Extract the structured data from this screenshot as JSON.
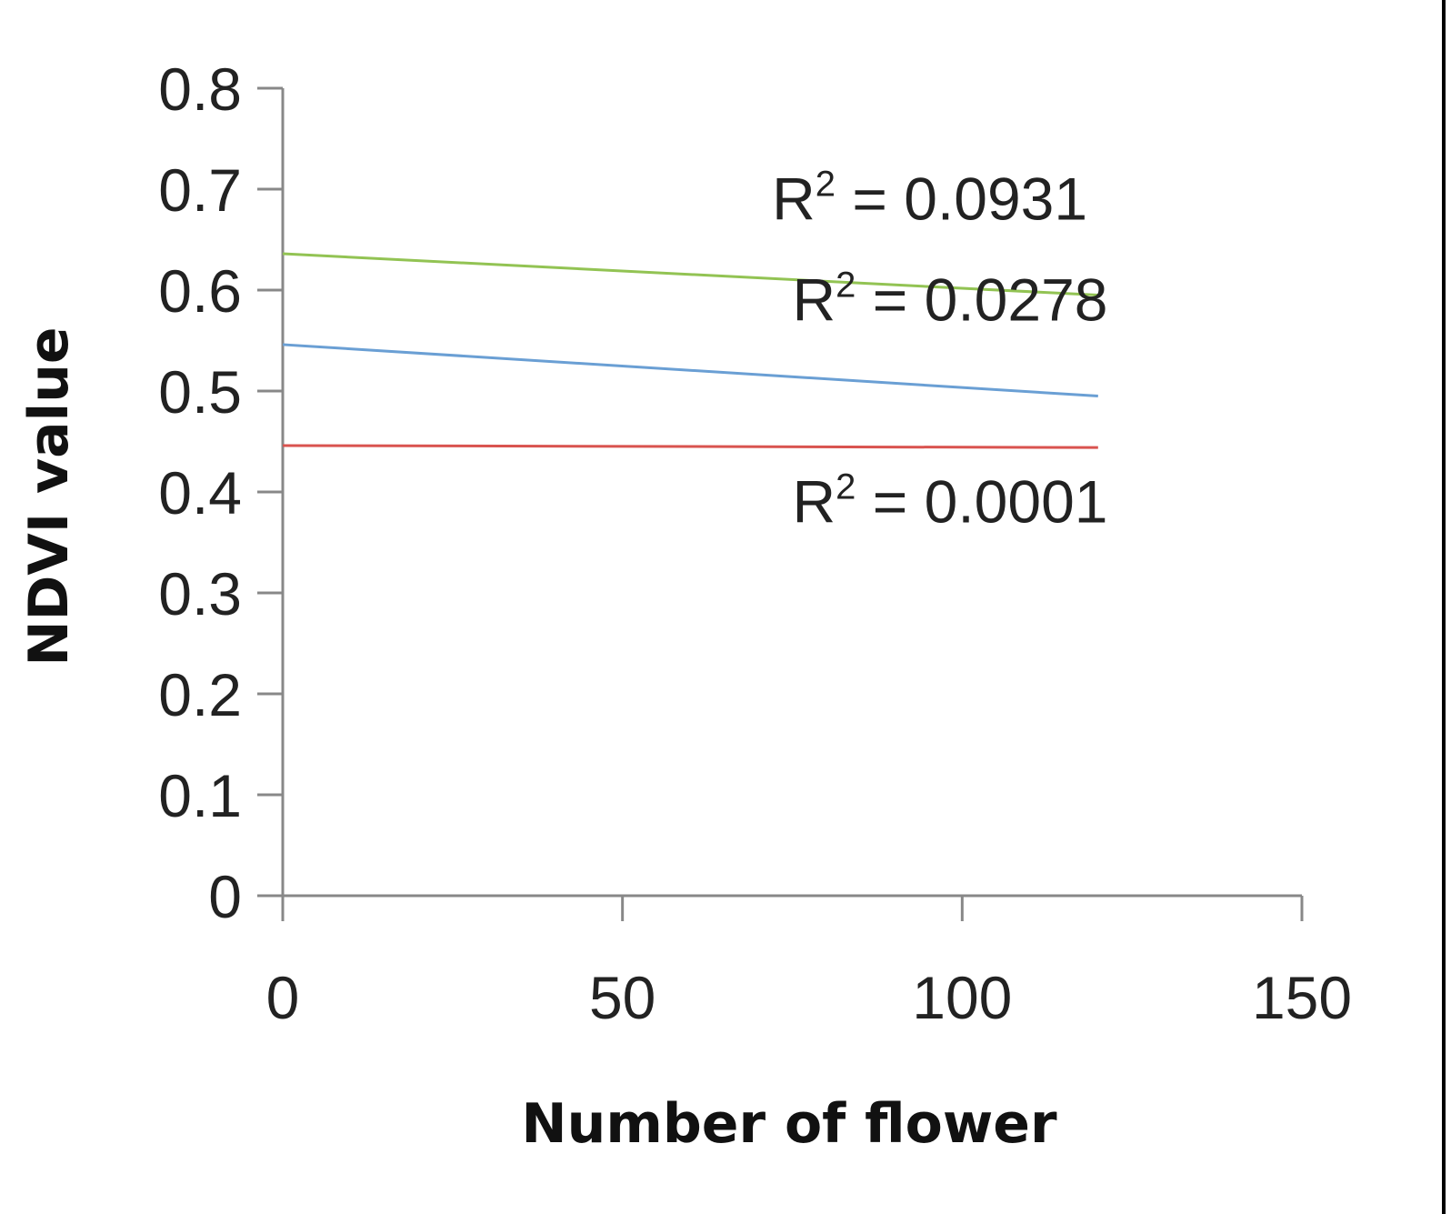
{
  "chart_data": {
    "type": "line",
    "xlabel": "Number of flower",
    "ylabel": "NDVI value",
    "xlim": [
      0,
      150
    ],
    "ylim": [
      0,
      0.8
    ],
    "x_ticks": [
      0,
      50,
      100,
      150
    ],
    "y_ticks": [
      0,
      0.1,
      0.2,
      0.3,
      0.4,
      0.5,
      0.6,
      0.7,
      0.8
    ],
    "x_tick_labels": [
      "0",
      "50",
      "100",
      "150"
    ],
    "y_tick_labels": [
      "0",
      "0.1",
      "0.2",
      "0.3",
      "0.4",
      "0.5",
      "0.6",
      "0.7",
      "0.8"
    ],
    "grid": false,
    "legend": "none",
    "series": [
      {
        "color": "#92c353",
        "x": [
          0,
          120
        ],
        "y": [
          0.636,
          0.595
        ],
        "r2_label": "0.0931"
      },
      {
        "color": "#6a9fd4",
        "x": [
          0,
          120
        ],
        "y": [
          0.546,
          0.495
        ],
        "r2_label": "0.0278"
      },
      {
        "color": "#d9534f",
        "x": [
          0,
          120
        ],
        "y": [
          0.446,
          0.444
        ],
        "r2_label": "0.0001"
      }
    ],
    "annotations": [
      {
        "text_prefix": "R",
        "sup": "2",
        "text_suffix": " = 0.0931",
        "x": 72,
        "y": 0.67
      },
      {
        "text_prefix": "R",
        "sup": "2",
        "text_suffix": " = 0.0278",
        "x": 75,
        "y": 0.57
      },
      {
        "text_prefix": "R",
        "sup": "2",
        "text_suffix": " = 0.0001",
        "x": 75,
        "y": 0.37
      }
    ]
  }
}
